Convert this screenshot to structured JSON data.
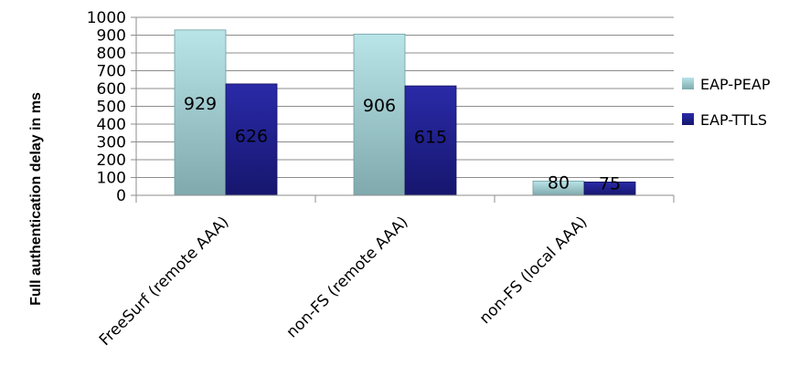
{
  "chart_data": {
    "type": "bar",
    "categories": [
      "FreeSurf (remote AAA)",
      "non-FS (remote AAA)",
      "non-FS (local AAA)"
    ],
    "series": [
      {
        "name": "EAP-PEAP",
        "values": [
          929,
          906,
          80
        ],
        "color": "#a9d8dc"
      },
      {
        "name": "EAP-TTLS",
        "values": [
          626,
          615,
          75
        ],
        "color": "#23239a"
      }
    ],
    "ylabel": "Full authentication delay in ms",
    "xlabel": "",
    "ylim": [
      0,
      1000
    ],
    "yticks": [
      0,
      100,
      200,
      300,
      400,
      500,
      600,
      700,
      800,
      900,
      1000
    ],
    "grid": true,
    "legend": "right",
    "data_labels": true
  }
}
